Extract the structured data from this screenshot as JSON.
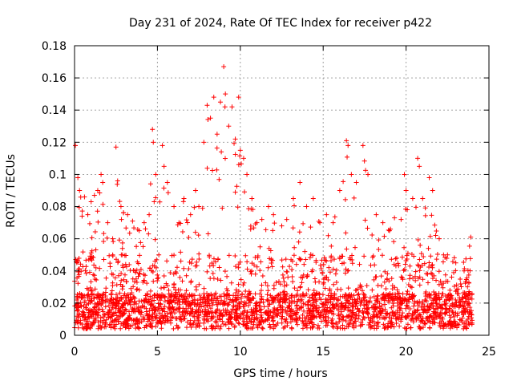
{
  "chart_data": {
    "type": "scatter",
    "title": "Day 231 of 2024, Rate Of TEC Index for receiver p422",
    "xlabel": "GPS time / hours",
    "ylabel": "ROTI / TECUs",
    "xlim": [
      0,
      25
    ],
    "ylim": [
      0,
      0.18
    ],
    "grid": true,
    "marker": "+",
    "color": "#ff0000",
    "x_ticks": [
      "0",
      "5",
      "10",
      "15",
      "20",
      "25"
    ],
    "y_ticks": [
      "0",
      "0.02",
      "0.04",
      "0.06",
      "0.08",
      "0.1",
      "0.12",
      "0.14",
      "0.16",
      "0.18"
    ],
    "series": [
      {
        "name": "ROTI",
        "points": [
          [
            0.05,
            0.118
          ],
          [
            0.2,
            0.098
          ],
          [
            0.3,
            0.09
          ],
          [
            0.6,
            0.086
          ],
          [
            0.8,
            0.075
          ],
          [
            1.0,
            0.083
          ],
          [
            1.2,
            0.087
          ],
          [
            1.4,
            0.09
          ],
          [
            1.6,
            0.1
          ],
          [
            1.7,
            0.095
          ],
          [
            2.0,
            0.07
          ],
          [
            2.3,
            0.06
          ],
          [
            2.5,
            0.117
          ],
          [
            2.6,
            0.096
          ],
          [
            2.8,
            0.08
          ],
          [
            3.2,
            0.075
          ],
          [
            3.5,
            0.071
          ],
          [
            3.9,
            0.065
          ],
          [
            4.2,
            0.07
          ],
          [
            4.5,
            0.075
          ],
          [
            4.7,
            0.128
          ],
          [
            4.75,
            0.12
          ],
          [
            4.9,
            0.1
          ],
          [
            5.3,
            0.118
          ],
          [
            5.4,
            0.105
          ],
          [
            5.6,
            0.095
          ],
          [
            6.0,
            0.08
          ],
          [
            6.3,
            0.07
          ],
          [
            6.6,
            0.085
          ],
          [
            7.0,
            0.075
          ],
          [
            7.3,
            0.09
          ],
          [
            7.5,
            0.08
          ],
          [
            7.8,
            0.12
          ],
          [
            8.0,
            0.143
          ],
          [
            8.2,
            0.135
          ],
          [
            8.4,
            0.148
          ],
          [
            8.6,
            0.125
          ],
          [
            8.8,
            0.145
          ],
          [
            9.0,
            0.167
          ],
          [
            9.1,
            0.15
          ],
          [
            9.3,
            0.13
          ],
          [
            9.5,
            0.142
          ],
          [
            9.7,
            0.122
          ],
          [
            9.9,
            0.148
          ],
          [
            10.0,
            0.115
          ],
          [
            10.2,
            0.11
          ],
          [
            10.4,
            0.1
          ],
          [
            10.7,
            0.085
          ],
          [
            11.0,
            0.07
          ],
          [
            11.3,
            0.072
          ],
          [
            11.7,
            0.08
          ],
          [
            12.0,
            0.075
          ],
          [
            12.5,
            0.068
          ],
          [
            12.8,
            0.072
          ],
          [
            13.2,
            0.085
          ],
          [
            13.6,
            0.095
          ],
          [
            14.0,
            0.08
          ],
          [
            14.4,
            0.085
          ],
          [
            14.8,
            0.07
          ],
          [
            15.2,
            0.075
          ],
          [
            15.6,
            0.07
          ],
          [
            16.0,
            0.09
          ],
          [
            16.4,
            0.121
          ],
          [
            16.5,
            0.118
          ],
          [
            16.7,
            0.1
          ],
          [
            17.0,
            0.095
          ],
          [
            17.4,
            0.118
          ],
          [
            17.7,
            0.1
          ],
          [
            18.2,
            0.075
          ],
          [
            18.6,
            0.07
          ],
          [
            19.0,
            0.065
          ],
          [
            19.3,
            0.073
          ],
          [
            19.7,
            0.072
          ],
          [
            19.9,
            0.1
          ],
          [
            20.0,
            0.09
          ],
          [
            20.4,
            0.085
          ],
          [
            20.7,
            0.11
          ],
          [
            20.8,
            0.105
          ],
          [
            21.0,
            0.085
          ],
          [
            21.4,
            0.098
          ],
          [
            21.6,
            0.09
          ],
          [
            22.0,
            0.06
          ],
          [
            22.5,
            0.05
          ],
          [
            23.0,
            0.045
          ],
          [
            23.5,
            0.04
          ],
          [
            23.9,
            0.061
          ]
        ]
      }
    ],
    "note": "Dense band of points between ~0.005 and ~0.05 ROTI spans the full 0–24 h range; listed points are the visible upper envelope."
  }
}
